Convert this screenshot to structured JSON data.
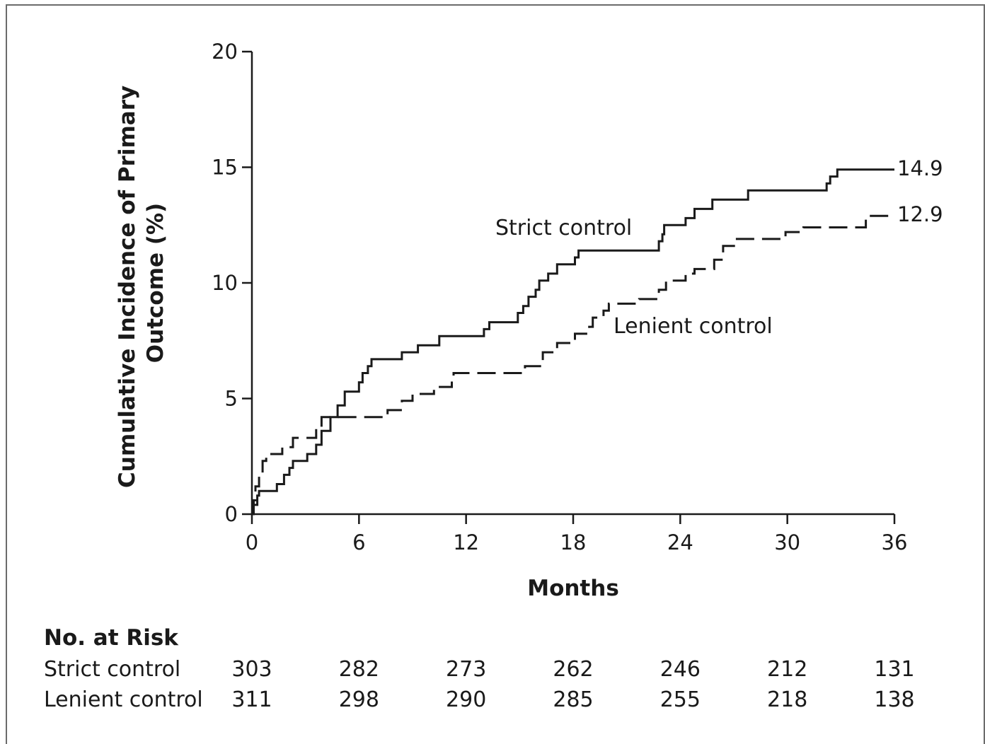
{
  "chart_data": {
    "type": "line",
    "chart_style": "kaplan-meier step curves",
    "xlabel": "Months",
    "ylabel_lines": [
      "Cumulative Incidence of Primary",
      "Outcome (%)"
    ],
    "xlim": [
      0,
      36
    ],
    "ylim": [
      0,
      20
    ],
    "x_ticks": [
      0,
      6,
      12,
      18,
      24,
      30,
      36
    ],
    "y_ticks": [
      0,
      5,
      10,
      15,
      20
    ],
    "grid": false,
    "legend": "inline labels",
    "series": [
      {
        "name": "Strict control",
        "style": "solid",
        "color": "#1a1a1a",
        "end_label": "14.9",
        "steps": [
          [
            0,
            0
          ],
          [
            0.1,
            0.4
          ],
          [
            0.3,
            0.8
          ],
          [
            0.4,
            1.0
          ],
          [
            1.4,
            1.3
          ],
          [
            1.8,
            1.7
          ],
          [
            2.1,
            2.0
          ],
          [
            2.3,
            2.3
          ],
          [
            3.1,
            2.6
          ],
          [
            3.6,
            3.0
          ],
          [
            3.9,
            3.6
          ],
          [
            4.4,
            4.2
          ],
          [
            4.8,
            4.7
          ],
          [
            5.2,
            5.3
          ],
          [
            6.0,
            5.7
          ],
          [
            6.2,
            6.1
          ],
          [
            6.5,
            6.4
          ],
          [
            6.7,
            6.7
          ],
          [
            8.4,
            7.0
          ],
          [
            9.3,
            7.3
          ],
          [
            10.5,
            7.7
          ],
          [
            13.0,
            8.0
          ],
          [
            13.3,
            8.3
          ],
          [
            14.9,
            8.7
          ],
          [
            15.2,
            9.0
          ],
          [
            15.5,
            9.4
          ],
          [
            15.9,
            9.7
          ],
          [
            16.1,
            10.1
          ],
          [
            16.6,
            10.4
          ],
          [
            17.1,
            10.8
          ],
          [
            18.1,
            11.1
          ],
          [
            18.3,
            11.4
          ],
          [
            22.8,
            11.8
          ],
          [
            23.0,
            12.1
          ],
          [
            23.1,
            12.5
          ],
          [
            24.3,
            12.8
          ],
          [
            24.8,
            13.2
          ],
          [
            25.8,
            13.6
          ],
          [
            27.8,
            14.0
          ],
          [
            32.2,
            14.3
          ],
          [
            32.4,
            14.6
          ],
          [
            32.8,
            14.9
          ],
          [
            36,
            14.9
          ]
        ]
      },
      {
        "name": "Lenient control",
        "style": "dashed",
        "color": "#1a1a1a",
        "end_label": "12.9",
        "steps": [
          [
            0,
            0
          ],
          [
            0.1,
            0.6
          ],
          [
            0.2,
            1.2
          ],
          [
            0.4,
            1.8
          ],
          [
            0.6,
            2.3
          ],
          [
            0.8,
            2.6
          ],
          [
            1.7,
            2.9
          ],
          [
            2.3,
            3.3
          ],
          [
            3.6,
            3.7
          ],
          [
            3.9,
            4.2
          ],
          [
            7.6,
            4.5
          ],
          [
            8.4,
            4.9
          ],
          [
            9.0,
            5.2
          ],
          [
            10.2,
            5.5
          ],
          [
            11.2,
            5.8
          ],
          [
            11.3,
            6.1
          ],
          [
            15.3,
            6.4
          ],
          [
            16.3,
            7.0
          ],
          [
            17.1,
            7.4
          ],
          [
            18.1,
            7.8
          ],
          [
            18.9,
            8.1
          ],
          [
            19.1,
            8.5
          ],
          [
            19.7,
            8.8
          ],
          [
            20.0,
            9.1
          ],
          [
            21.7,
            9.3
          ],
          [
            22.8,
            9.7
          ],
          [
            23.2,
            10.1
          ],
          [
            24.3,
            10.4
          ],
          [
            24.8,
            10.6
          ],
          [
            25.9,
            11.0
          ],
          [
            26.4,
            11.6
          ],
          [
            27.1,
            11.9
          ],
          [
            29.9,
            12.2
          ],
          [
            30.9,
            12.4
          ],
          [
            34.4,
            12.9
          ],
          [
            36,
            12.9
          ]
        ]
      }
    ]
  },
  "inline_labels": {
    "strict": "Strict control",
    "lenient": "Lenient control"
  },
  "risk_table": {
    "heading": "No. at Risk",
    "months": [
      0,
      6,
      12,
      18,
      24,
      30,
      36
    ],
    "rows": [
      {
        "label": "Strict control",
        "values": [
          "303",
          "282",
          "273",
          "262",
          "246",
          "212",
          "131"
        ]
      },
      {
        "label": "Lenient control",
        "values": [
          "311",
          "298",
          "290",
          "285",
          "255",
          "218",
          "138"
        ]
      }
    ]
  }
}
